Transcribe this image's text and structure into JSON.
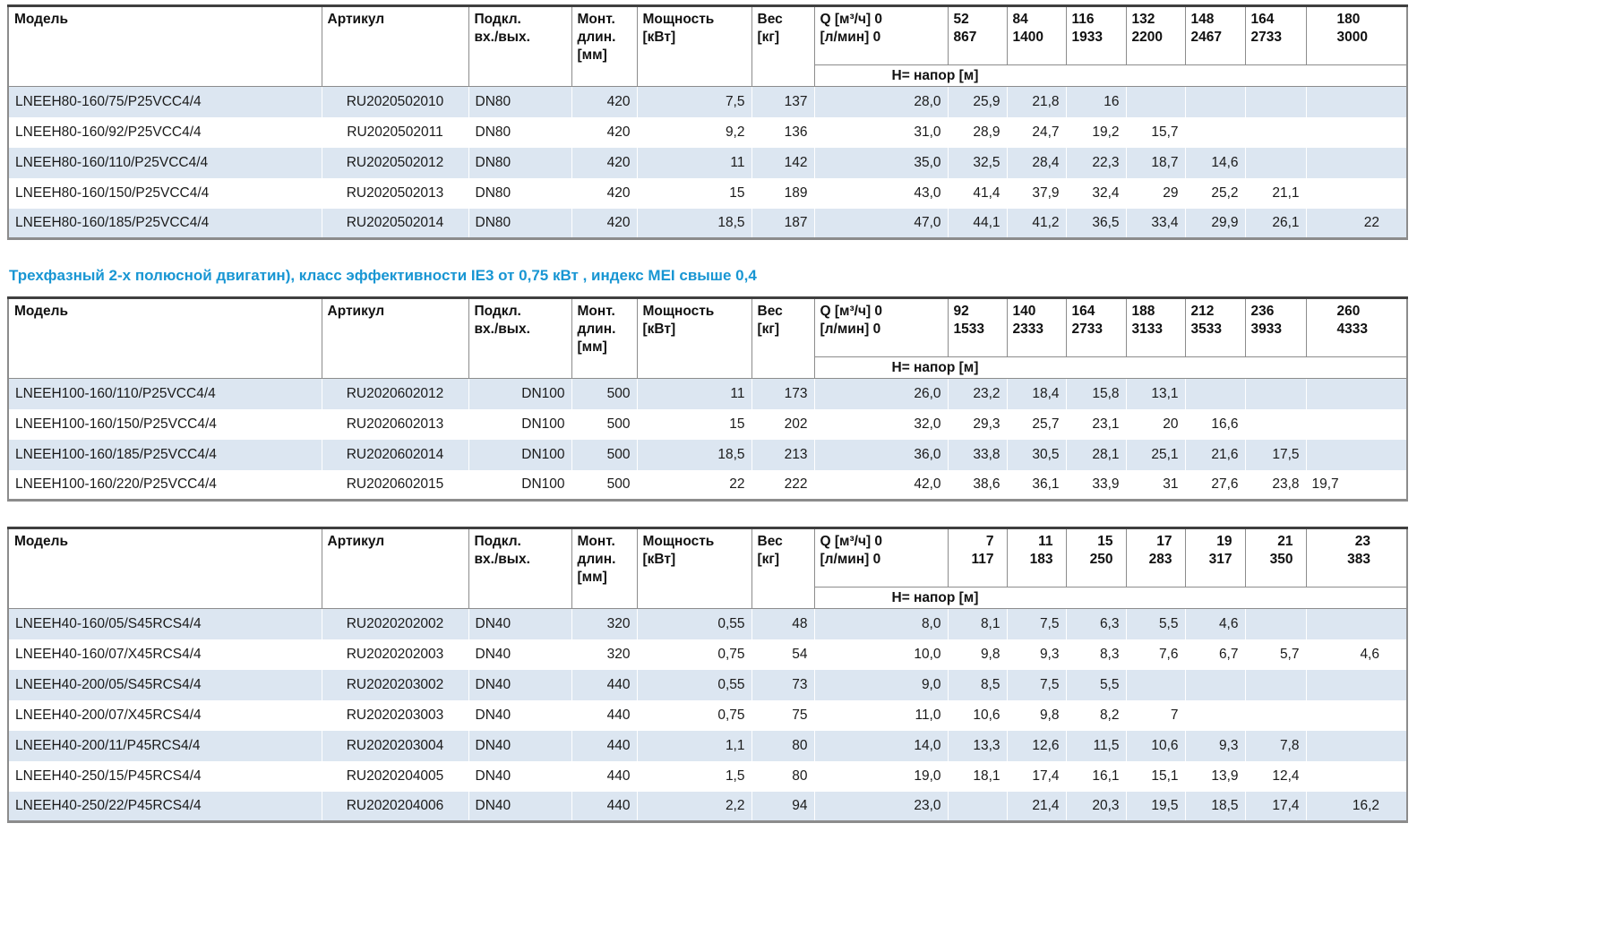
{
  "theme": {
    "heading_color": "#1896d3",
    "stripe_color": "#dce6f1",
    "border_color": "#8c8c8c",
    "top_border_color": "#3f3f3f",
    "text_color": "#1a1a1a"
  },
  "section_heading": "Трехфазный 2-х полюсной двигатин), класс эффективности IE3 от 0,75 кВт ,  индекс MEI свыше 0,4",
  "tables": [
    {
      "name": "pump-table-lneeh80",
      "flow_header_align": "left",
      "dn_align": "left",
      "last_col_align": "right",
      "headers": {
        "model": "Модель",
        "article": "Артикул",
        "connection": [
          "Подкл.",
          "вх./вых."
        ],
        "mount": [
          "Монт.",
          "длин.",
          "[мм]"
        ],
        "power": [
          "Мощность",
          "[кВт]"
        ],
        "weight": [
          "Вес",
          "[кг]"
        ],
        "q": [
          "Q [м³/ч] 0",
          "[л/мин] 0"
        ],
        "head": "Н= напор [м]",
        "flows": [
          [
            "52",
            "867"
          ],
          [
            "84",
            "1400"
          ],
          [
            "116",
            "1933"
          ],
          [
            "132",
            "2200"
          ],
          [
            "148",
            "2467"
          ],
          [
            "164",
            "2733"
          ],
          [
            "180",
            "3000"
          ]
        ]
      },
      "rows": [
        [
          "LNEEH80-160/75/P25VCC4/4",
          "RU2020502010",
          "DN80",
          "420",
          "7,5",
          "137",
          "28,0",
          "25,9",
          "21,8",
          "16",
          "",
          "",
          "",
          ""
        ],
        [
          "LNEEH80-160/92/P25VCC4/4",
          "RU2020502011",
          "DN80",
          "420",
          "9,2",
          "136",
          "31,0",
          "28,9",
          "24,7",
          "19,2",
          "15,7",
          "",
          "",
          ""
        ],
        [
          "LNEEH80-160/110/P25VCC4/4",
          "RU2020502012",
          "DN80",
          "420",
          "11",
          "142",
          "35,0",
          "32,5",
          "28,4",
          "22,3",
          "18,7",
          "14,6",
          "",
          ""
        ],
        [
          "LNEEH80-160/150/P25VCC4/4",
          "RU2020502013",
          "DN80",
          "420",
          "15",
          "189",
          "43,0",
          "41,4",
          "37,9",
          "32,4",
          "29",
          "25,2",
          "21,1",
          ""
        ],
        [
          "LNEEH80-160/185/P25VCC4/4",
          "RU2020502014",
          "DN80",
          "420",
          "18,5",
          "187",
          "47,0",
          "44,1",
          "41,2",
          "36,5",
          "33,4",
          "29,9",
          "26,1",
          "22"
        ]
      ]
    },
    {
      "name": "pump-table-lneeh100",
      "flow_header_align": "left",
      "dn_align": "right",
      "last_col_align": "left",
      "headers": {
        "model": "Модель",
        "article": "Артикул",
        "connection": [
          "Подкл.",
          "вх./вых."
        ],
        "mount": [
          "Монт.",
          "длин.",
          "[мм]"
        ],
        "power": [
          "Мощность",
          "[кВт]"
        ],
        "weight": [
          "Вес",
          "[кг]"
        ],
        "q": [
          "Q [м³/ч] 0",
          "[л/мин] 0"
        ],
        "head": "Н= напор [м]",
        "flows": [
          [
            "92",
            "1533"
          ],
          [
            "140",
            "2333"
          ],
          [
            "164",
            "2733"
          ],
          [
            "188",
            "3133"
          ],
          [
            "212",
            "3533"
          ],
          [
            "236",
            "3933"
          ],
          [
            "260",
            "4333"
          ]
        ]
      },
      "rows": [
        [
          "LNEEH100-160/110/P25VCC4/4",
          "RU2020602012",
          "DN100",
          "500",
          "11",
          "173",
          "26,0",
          "23,2",
          "18,4",
          "15,8",
          "13,1",
          "",
          "",
          ""
        ],
        [
          "LNEEH100-160/150/P25VCC4/4",
          "RU2020602013",
          "DN100",
          "500",
          "15",
          "202",
          "32,0",
          "29,3",
          "25,7",
          "23,1",
          "20",
          "16,6",
          "",
          ""
        ],
        [
          "LNEEH100-160/185/P25VCC4/4",
          "RU2020602014",
          "DN100",
          "500",
          "18,5",
          "213",
          "36,0",
          "33,8",
          "30,5",
          "28,1",
          "25,1",
          "21,6",
          "17,5",
          ""
        ],
        [
          "LNEEH100-160/220/P25VCC4/4",
          "RU2020602015",
          "DN100",
          "500",
          "22",
          "222",
          "42,0",
          "38,6",
          "36,1",
          "33,9",
          "31",
          "27,6",
          "23,8",
          "19,7"
        ]
      ]
    },
    {
      "name": "pump-table-lneeh40",
      "flow_header_align": "right",
      "dn_align": "left",
      "last_col_align": "right",
      "headers": {
        "model": "Модель",
        "article": "Артикул",
        "connection": [
          "Подкл.",
          "вх./вых."
        ],
        "mount": [
          "Монт.",
          "длин.",
          "[мм]"
        ],
        "power": [
          "Мощность",
          "[кВт]"
        ],
        "weight": [
          "Вес",
          "[кг]"
        ],
        "q": [
          "Q [м³/ч] 0",
          "[л/мин] 0"
        ],
        "head": "Н= напор [м]",
        "flows": [
          [
            "7",
            "117"
          ],
          [
            "11",
            "183"
          ],
          [
            "15",
            "250"
          ],
          [
            "17",
            "283"
          ],
          [
            "19",
            "317"
          ],
          [
            "21",
            "350"
          ],
          [
            "23",
            "383"
          ]
        ]
      },
      "rows": [
        [
          "LNEEH40-160/05/S45RCS4/4",
          "RU2020202002",
          "DN40",
          "320",
          "0,55",
          "48",
          "8,0",
          "8,1",
          "7,5",
          "6,3",
          "5,5",
          "4,6",
          "",
          ""
        ],
        [
          "LNEEH40-160/07/X45RCS4/4",
          "RU2020202003",
          "DN40",
          "320",
          "0,75",
          "54",
          "10,0",
          "9,8",
          "9,3",
          "8,3",
          "7,6",
          "6,7",
          "5,7",
          "4,6"
        ],
        [
          "LNEEH40-200/05/S45RCS4/4",
          "RU2020203002",
          "DN40",
          "440",
          "0,55",
          "73",
          "9,0",
          "8,5",
          "7,5",
          "5,5",
          "",
          "",
          "",
          ""
        ],
        [
          "LNEEH40-200/07/X45RCS4/4",
          "RU2020203003",
          "DN40",
          "440",
          "0,75",
          "75",
          "11,0",
          "10,6",
          "9,8",
          "8,2",
          "7",
          "",
          "",
          ""
        ],
        [
          "LNEEH40-200/11/P45RCS4/4",
          "RU2020203004",
          "DN40",
          "440",
          "1,1",
          "80",
          "14,0",
          "13,3",
          "12,6",
          "11,5",
          "10,6",
          "9,3",
          "7,8",
          ""
        ],
        [
          "LNEEH40-250/15/P45RCS4/4",
          "RU2020204005",
          "DN40",
          "440",
          "1,5",
          "80",
          "19,0",
          "18,1",
          "17,4",
          "16,1",
          "15,1",
          "13,9",
          "12,4",
          ""
        ],
        [
          "LNEEH40-250/22/P45RCS4/4",
          "RU2020204006",
          "DN40",
          "440",
          "2,2",
          "94",
          "23,0",
          "",
          "21,4",
          "20,3",
          "19,5",
          "18,5",
          "17,4",
          "16,2"
        ]
      ]
    }
  ]
}
